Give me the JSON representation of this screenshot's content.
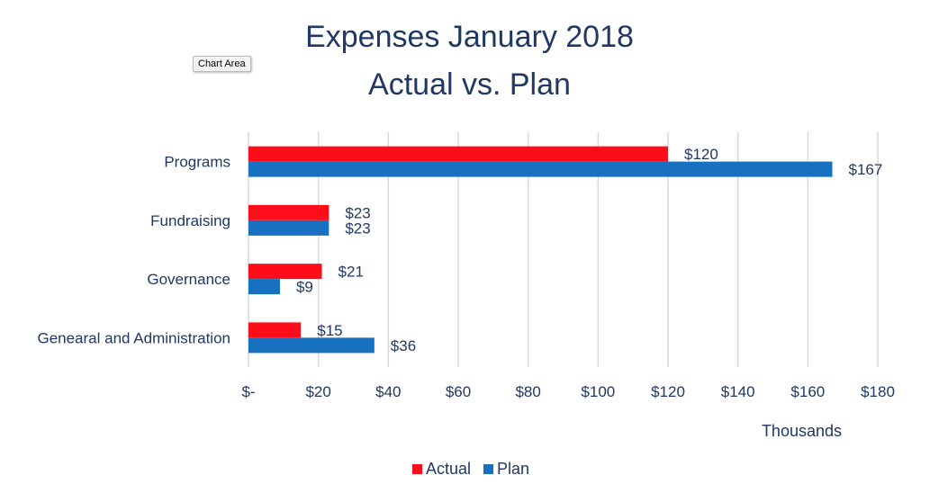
{
  "tooltip": "Chart Area",
  "chart_data": {
    "type": "bar",
    "orientation": "horizontal",
    "title": [
      "Expenses January 2018",
      "Actual vs. Plan"
    ],
    "categories": [
      "Programs",
      "Fundraising",
      "Governance",
      "Genearal and Administration"
    ],
    "series": [
      {
        "name": "Actual",
        "color": "#ff0d1a",
        "values": [
          120,
          23,
          21,
          15
        ],
        "labels": [
          "$120",
          "$23",
          "$21",
          "$15"
        ]
      },
      {
        "name": "Plan",
        "color": "#1770c0",
        "values": [
          167,
          23,
          9,
          36
        ],
        "labels": [
          "$167",
          "$23",
          "$9",
          "$36"
        ]
      }
    ],
    "xlim": [
      0,
      180
    ],
    "xticks": [
      0,
      20,
      40,
      60,
      80,
      100,
      120,
      140,
      160,
      180
    ],
    "xtick_labels": [
      "$-",
      "$20",
      "$40",
      "$60",
      "$80",
      "$100",
      "$120",
      "$140",
      "$160",
      "$180"
    ],
    "xlabel": "Thousands",
    "ylabel": "",
    "grid": "vertical",
    "legend": "bottom"
  }
}
